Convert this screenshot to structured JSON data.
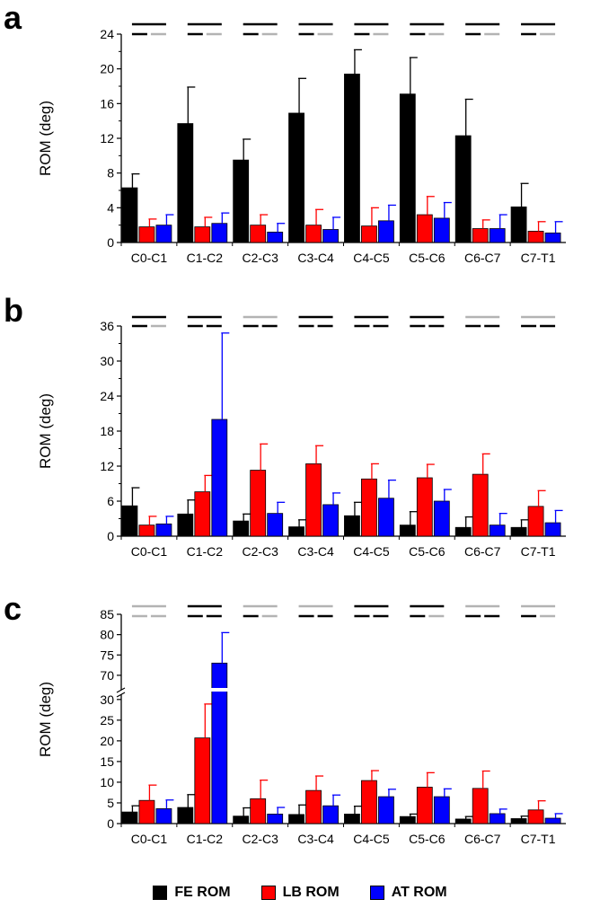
{
  "colors": {
    "FE": "#000000",
    "LB": "#ff0000",
    "AT": "#0000ff",
    "sig_black": "#000000",
    "sig_gray": "#b3b3b3",
    "axis": "#000000"
  },
  "legend": [
    {
      "key": "FE",
      "label": "FE ROM"
    },
    {
      "key": "LB",
      "label": "LB ROM"
    },
    {
      "key": "AT",
      "label": "AT ROM"
    }
  ],
  "chart_data": [
    {
      "type": "bar",
      "panel": "a",
      "ylabel": "ROM (deg)",
      "categories": [
        "C0-C1",
        "C1-C2",
        "C2-C3",
        "C3-C4",
        "C4-C5",
        "C5-C6",
        "C6-C7",
        "C7-T1"
      ],
      "ylim": [
        0,
        24
      ],
      "yticks": [
        "0",
        "4",
        "8",
        "12",
        "16",
        "20",
        "24"
      ],
      "series": [
        {
          "name": "FE ROM",
          "key": "FE",
          "values": [
            6.3,
            13.7,
            9.5,
            14.9,
            19.4,
            17.1,
            12.3,
            4.1
          ],
          "errors": [
            1.6,
            4.2,
            2.4,
            4.0,
            2.8,
            4.2,
            4.2,
            2.7
          ]
        },
        {
          "name": "LB ROM",
          "key": "LB",
          "values": [
            1.8,
            1.8,
            2.0,
            2.0,
            1.9,
            3.2,
            1.6,
            1.3
          ],
          "errors": [
            0.9,
            1.1,
            1.2,
            1.8,
            2.1,
            2.1,
            1.0,
            1.1
          ]
        },
        {
          "name": "AT ROM",
          "key": "AT",
          "values": [
            2.0,
            2.2,
            1.2,
            1.5,
            2.5,
            2.8,
            1.6,
            1.1
          ],
          "errors": [
            1.2,
            1.2,
            1.0,
            1.4,
            1.8,
            1.8,
            1.6,
            1.3
          ]
        }
      ],
      "significance": [
        {
          "upper": "black",
          "lower": [
            "black",
            "gray"
          ]
        },
        {
          "upper": "black",
          "lower": [
            "black",
            "gray"
          ]
        },
        {
          "upper": "black",
          "lower": [
            "black",
            "gray"
          ]
        },
        {
          "upper": "black",
          "lower": [
            "black",
            "gray"
          ]
        },
        {
          "upper": "black",
          "lower": [
            "black",
            "gray"
          ]
        },
        {
          "upper": "black",
          "lower": [
            "black",
            "gray"
          ]
        },
        {
          "upper": "black",
          "lower": [
            "black",
            "gray"
          ]
        },
        {
          "upper": "black",
          "lower": [
            "black",
            "gray"
          ]
        }
      ]
    },
    {
      "type": "bar",
      "panel": "b",
      "ylabel": "ROM (deg)",
      "categories": [
        "C0-C1",
        "C1-C2",
        "C2-C3",
        "C3-C4",
        "C4-C5",
        "C5-C6",
        "C6-C7",
        "C7-T1"
      ],
      "ylim": [
        0,
        36
      ],
      "yticks": [
        "0",
        "6",
        "12",
        "18",
        "24",
        "30",
        "36"
      ],
      "series": [
        {
          "name": "FE ROM",
          "key": "FE",
          "values": [
            5.2,
            3.8,
            2.6,
            1.6,
            3.5,
            1.9,
            1.5,
            1.5
          ],
          "errors": [
            3.1,
            2.4,
            1.2,
            1.2,
            2.3,
            2.3,
            1.8,
            1.3
          ]
        },
        {
          "name": "LB ROM",
          "key": "LB",
          "values": [
            1.9,
            7.6,
            11.3,
            12.4,
            9.8,
            10.0,
            10.6,
            5.1
          ],
          "errors": [
            1.5,
            2.8,
            4.5,
            3.1,
            2.6,
            2.3,
            3.5,
            2.7
          ]
        },
        {
          "name": "AT ROM",
          "key": "AT",
          "values": [
            2.1,
            20.0,
            3.9,
            5.4,
            6.5,
            6.0,
            1.9,
            2.3
          ],
          "errors": [
            1.3,
            14.8,
            1.9,
            2.0,
            3.1,
            2.0,
            2.0,
            2.1
          ]
        }
      ],
      "significance": [
        {
          "upper": "black",
          "lower": [
            "black",
            "gray"
          ]
        },
        {
          "upper": "black",
          "lower": [
            "black",
            "black"
          ]
        },
        {
          "upper": "gray",
          "lower": [
            "black",
            "black"
          ]
        },
        {
          "upper": "black",
          "lower": [
            "black",
            "black"
          ]
        },
        {
          "upper": "black",
          "lower": [
            "black",
            "black"
          ]
        },
        {
          "upper": "black",
          "lower": [
            "black",
            "black"
          ]
        },
        {
          "upper": "gray",
          "lower": [
            "black",
            "black"
          ]
        },
        {
          "upper": "gray",
          "lower": [
            "black",
            "black"
          ]
        }
      ]
    },
    {
      "type": "bar",
      "panel": "c",
      "ylabel": "ROM (deg)",
      "categories": [
        "C0-C1",
        "C1-C2",
        "C2-C3",
        "C3-C4",
        "C4-C5",
        "C5-C6",
        "C6-C7",
        "C7-T1"
      ],
      "ylim": [
        0,
        85
      ],
      "axis_break": [
        33,
        66
      ],
      "yticks": [
        "0",
        "5",
        "10",
        "15",
        "20",
        "25",
        "30",
        "70",
        "75",
        "80",
        "85"
      ],
      "series": [
        {
          "name": "FE ROM",
          "key": "FE",
          "values": [
            2.8,
            3.9,
            1.8,
            2.2,
            2.3,
            1.7,
            1.1,
            1.2
          ],
          "errors": [
            1.5,
            3.1,
            2.0,
            2.3,
            1.9,
            0.6,
            0.6,
            0.6
          ]
        },
        {
          "name": "LB ROM",
          "key": "LB",
          "values": [
            5.6,
            20.7,
            6.0,
            8.0,
            10.4,
            8.8,
            8.5,
            3.3
          ],
          "errors": [
            3.7,
            8.2,
            4.5,
            3.5,
            2.4,
            3.5,
            4.2,
            2.2
          ]
        },
        {
          "name": "AT ROM",
          "key": "AT",
          "values": [
            3.6,
            73.0,
            2.3,
            4.3,
            6.5,
            6.5,
            2.4,
            1.3
          ],
          "errors": [
            2.1,
            7.5,
            1.6,
            2.6,
            1.8,
            1.9,
            1.1,
            1.1
          ]
        }
      ],
      "significance": [
        {
          "upper": "gray",
          "lower": [
            "gray",
            "gray"
          ]
        },
        {
          "upper": "black",
          "lower": [
            "black",
            "black"
          ]
        },
        {
          "upper": "gray",
          "lower": [
            "black",
            "gray"
          ]
        },
        {
          "upper": "gray",
          "lower": [
            "black",
            "black"
          ]
        },
        {
          "upper": "black",
          "lower": [
            "black",
            "black"
          ]
        },
        {
          "upper": "black",
          "lower": [
            "black",
            "gray"
          ]
        },
        {
          "upper": "gray",
          "lower": [
            "black",
            "black"
          ]
        },
        {
          "upper": "gray",
          "lower": [
            "black",
            "gray"
          ]
        }
      ]
    }
  ]
}
